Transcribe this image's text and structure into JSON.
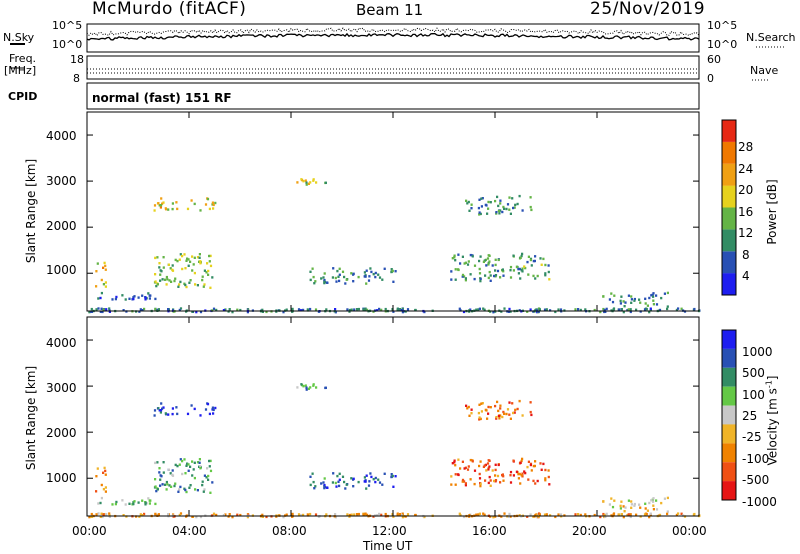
{
  "header": {
    "station": "McMurdo (fitACF)",
    "beam": "Beam 11",
    "date": "25/Nov/2019"
  },
  "top_strip": {
    "left_label": "N.Sky",
    "right_label": "N.Search",
    "left_ticks": [
      "10^5",
      "10^0"
    ],
    "right_ticks": [
      "10^5",
      "10^0"
    ]
  },
  "freq_strip": {
    "left_label_line1": "Freq.",
    "left_label_line2": "[MHz]",
    "left_ticks": [
      "18",
      "8"
    ],
    "right_label": "Nave",
    "right_ticks": [
      "60",
      "0"
    ]
  },
  "cpid": {
    "label": "CPID",
    "text": "normal (fast) 151 RF"
  },
  "x_axis": {
    "title": "Time UT",
    "ticks": [
      "00:00",
      "04:00",
      "08:00",
      "12:00",
      "16:00",
      "20:00",
      "00:00"
    ]
  },
  "chart_data": [
    {
      "type": "heatmap",
      "variable": "Power",
      "ylabel": "Slant Range [km]",
      "xlabel": "Time UT",
      "ylim": [
        180,
        4500
      ],
      "y_ticks": [
        "1000",
        "2000",
        "3000",
        "4000"
      ],
      "x_ticks": [
        "00:00",
        "04:00",
        "08:00",
        "12:00",
        "16:00",
        "20:00",
        "00:00"
      ],
      "colorbar": {
        "label": "Power [dB]",
        "ticks": [
          "4",
          "8",
          "12",
          "16",
          "20",
          "24",
          "28"
        ],
        "colors": [
          "#1e1ef0",
          "#2850b4",
          "#328c64",
          "#64b446",
          "#e6d21e",
          "#f0a014",
          "#f07800",
          "#e62814"
        ]
      },
      "echo_regions": [
        {
          "t_start": 0.3,
          "t_end": 0.7,
          "r_low": 700,
          "r_high": 1300,
          "level": 0.65
        },
        {
          "t_start": 0.4,
          "t_end": 2.8,
          "r_low": 420,
          "r_high": 620,
          "level": 0.2
        },
        {
          "t_start": 2.6,
          "t_end": 4.9,
          "r_low": 700,
          "r_high": 1450,
          "level": 0.45
        },
        {
          "t_start": 2.6,
          "t_end": 5.0,
          "r_low": 2380,
          "r_high": 2650,
          "level": 0.6
        },
        {
          "t_start": 8.0,
          "t_end": 9.4,
          "r_low": 2950,
          "r_high": 3080,
          "level": 0.5
        },
        {
          "t_start": 8.7,
          "t_end": 12.2,
          "r_low": 800,
          "r_high": 1150,
          "level": 0.3
        },
        {
          "t_start": 14.2,
          "t_end": 18.1,
          "r_low": 850,
          "r_high": 1450,
          "level": 0.35
        },
        {
          "t_start": 14.8,
          "t_end": 17.4,
          "r_low": 2300,
          "r_high": 2700,
          "level": 0.3
        },
        {
          "t_start": 20.2,
          "t_end": 22.8,
          "r_low": 300,
          "r_high": 600,
          "level": 0.3
        },
        {
          "t_start": 0.0,
          "t_end": 24.0,
          "r_low": 180,
          "r_high": 260,
          "level": 0.25
        }
      ]
    },
    {
      "type": "heatmap",
      "variable": "Velocity",
      "ylabel": "Slant Range [km]",
      "xlabel": "Time UT",
      "ylim": [
        180,
        4500
      ],
      "y_ticks": [
        "1000",
        "2000",
        "3000",
        "4000"
      ],
      "x_ticks": [
        "00:00",
        "04:00",
        "08:00",
        "12:00",
        "16:00",
        "20:00",
        "00:00"
      ],
      "colorbar": {
        "label": "Velocity [m s",
        "label_sup": "-1",
        "label_end": "]",
        "ticks": [
          "1000",
          "500",
          "100",
          "25",
          "-25",
          "-100",
          "-500",
          "-1000"
        ],
        "colors": [
          "#1e1ef0",
          "#2850b4",
          "#328c64",
          "#64c846",
          "#c8c8c8",
          "#f0b428",
          "#f08200",
          "#f05014",
          "#e61414"
        ]
      },
      "echo_regions": [
        {
          "t_start": 0.3,
          "t_end": 0.7,
          "r_low": 700,
          "r_high": 1300,
          "level": 0.75
        },
        {
          "t_start": 0.4,
          "t_end": 2.8,
          "r_low": 420,
          "r_high": 620,
          "level": 0.4
        },
        {
          "t_start": 2.6,
          "t_end": 4.9,
          "r_low": 700,
          "r_high": 1450,
          "level": 0.3
        },
        {
          "t_start": 2.6,
          "t_end": 5.0,
          "r_low": 2380,
          "r_high": 2650,
          "level": 0.1
        },
        {
          "t_start": 8.0,
          "t_end": 9.4,
          "r_low": 2950,
          "r_high": 3080,
          "level": 0.3
        },
        {
          "t_start": 8.7,
          "t_end": 12.2,
          "r_low": 800,
          "r_high": 1150,
          "level": 0.2
        },
        {
          "t_start": 14.2,
          "t_end": 18.1,
          "r_low": 850,
          "r_high": 1450,
          "level": 0.8
        },
        {
          "t_start": 14.8,
          "t_end": 17.4,
          "r_low": 2300,
          "r_high": 2700,
          "level": 0.75
        },
        {
          "t_start": 20.2,
          "t_end": 22.8,
          "r_low": 300,
          "r_high": 600,
          "level": 0.55
        },
        {
          "t_start": 0.0,
          "t_end": 24.0,
          "r_low": 180,
          "r_high": 260,
          "level": 0.65
        }
      ]
    }
  ]
}
